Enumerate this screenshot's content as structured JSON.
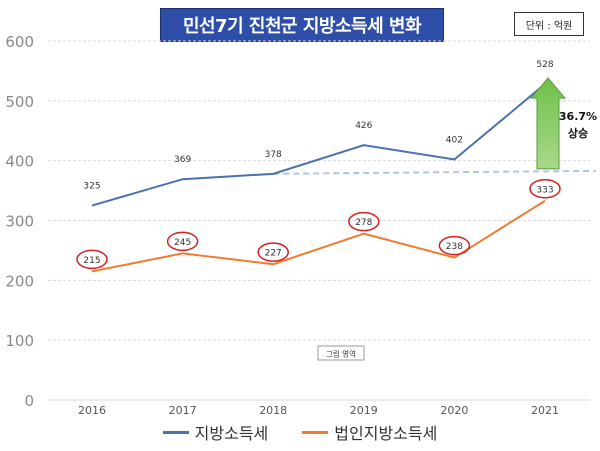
{
  "title": "민선7기 진천군 지방소득세 변화",
  "unit": "단위 : 억원",
  "chart_data": {
    "type": "line",
    "x": [
      "2016",
      "2017",
      "2018",
      "2019",
      "2020",
      "2021"
    ],
    "ylim": [
      0,
      600
    ],
    "yticks": [
      0,
      100,
      200,
      300,
      400,
      500,
      600
    ],
    "grid": true,
    "legend_position": "bottom",
    "series": [
      {
        "name": "지방소득세",
        "values": [
          325,
          369,
          378,
          426,
          402,
          528
        ],
        "color": "#4a72b0"
      },
      {
        "name": "법인지방소득세",
        "values": [
          215,
          245,
          227,
          278,
          238,
          333
        ],
        "color": "#ed7d31"
      }
    ],
    "annotation": {
      "text_pct": "36.7%",
      "text_word": "상승"
    },
    "watermark": "그림 영역"
  }
}
